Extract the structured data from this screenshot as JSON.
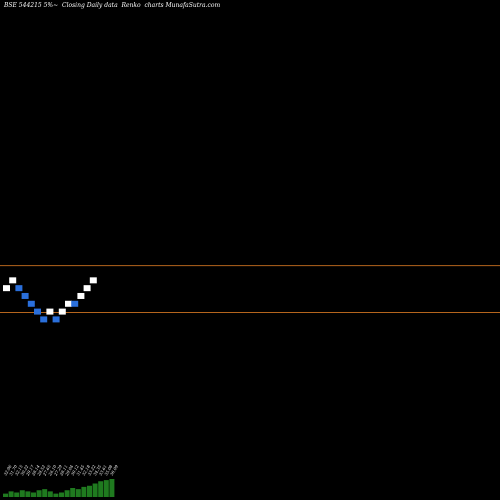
{
  "chart_data": {
    "type": "renko",
    "title": "BSE 544215 5%~  Closing Daily data  Renko  charts MunafaSutra.com",
    "colors": {
      "background": "#000000",
      "up_brick": "#ffffff",
      "down_brick": "#2a6fdb",
      "reference_line": "#b5651d",
      "volume_bar": "#1f7a1f",
      "volume_label": "#ffffff"
    },
    "reference_lines": [
      {
        "name": "upper",
        "value": 4
      },
      {
        "name": "lower",
        "value": -2
      }
    ],
    "ylim": [
      -26,
      38
    ],
    "bricks": [
      {
        "dir": "up",
        "level": 1
      },
      {
        "dir": "up",
        "level": 2
      },
      {
        "dir": "down",
        "level": 1
      },
      {
        "dir": "down",
        "level": 0
      },
      {
        "dir": "down",
        "level": -1
      },
      {
        "dir": "down",
        "level": -2
      },
      {
        "dir": "down",
        "level": -3
      },
      {
        "dir": "up",
        "level": -2
      },
      {
        "dir": "down",
        "level": -3
      },
      {
        "dir": "up",
        "level": -2
      },
      {
        "dir": "up",
        "level": -1
      },
      {
        "dir": "down",
        "level": -1
      },
      {
        "dir": "up",
        "level": 0
      },
      {
        "dir": "up",
        "level": 1
      },
      {
        "dir": "up",
        "level": 2
      }
    ],
    "volume_labels": [
      "32.96",
      "31.70",
      "32.15",
      "30.22",
      "29.17",
      "28.14",
      "28.52",
      "27.65",
      "26.10",
      "27.29",
      "28.11",
      "29.04",
      "30.12",
      "31.45",
      "32.18",
      "33.22",
      "34.35",
      "33.61",
      "35.08",
      "36.09"
    ],
    "volume_values": [
      3,
      5,
      4,
      6,
      5,
      4,
      6,
      7,
      5,
      3,
      4,
      6,
      8,
      7,
      9,
      10,
      12,
      14,
      15,
      16
    ]
  }
}
